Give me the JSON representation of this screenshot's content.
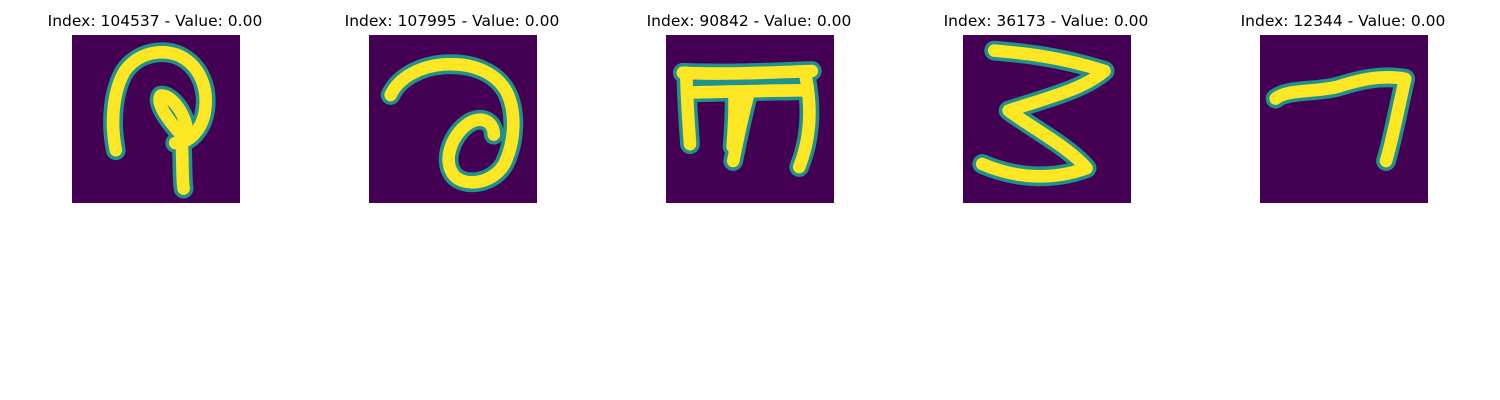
{
  "panels": [
    {
      "title": "Index: 104537 - Value: 0.00",
      "glyph": "digit-9-like-glyph"
    },
    {
      "title": "Index: 107995 - Value: 0.00",
      "glyph": "looped-stroke-glyph"
    },
    {
      "title": "Index: 90842 - Value: 0.00",
      "glyph": "m-like-glyph"
    },
    {
      "title": "Index: 36173 - Value: 0.00",
      "glyph": "digit-3-like-glyph"
    },
    {
      "title": "Index: 12344 - Value: 0.00",
      "glyph": "digit-7-like-glyph"
    }
  ],
  "colors": {
    "background": "#440154",
    "stroke": "#fde725",
    "edge": "#21918c"
  }
}
